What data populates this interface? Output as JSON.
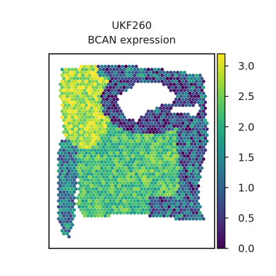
{
  "chart_data": {
    "type": "heatmap",
    "subtype": "spatial-transcriptomics-spot-map",
    "title_lines": [
      "UKF260",
      "BCAN expression"
    ],
    "xlabel": "",
    "ylabel": "",
    "axis_ticks_shown": false,
    "colormap": "viridis",
    "colorbar": {
      "min": 0.0,
      "max": 3.2,
      "ticks": [
        0.0,
        0.5,
        1.0,
        1.5,
        2.0,
        2.5,
        3.0
      ],
      "tick_labels": [
        "0.0",
        "0.5",
        "1.0",
        "1.5",
        "2.0",
        "2.5",
        "3.0"
      ],
      "placement": "right"
    },
    "expression_regions": [
      {
        "region": "upper-left tissue band",
        "approx_value": 2.5
      },
      {
        "region": "central tissue body",
        "approx_value": 2.2
      },
      {
        "region": "right edge",
        "approx_value": 0.9
      },
      {
        "region": "around upper void",
        "approx_value": 0.6
      },
      {
        "region": "left detached strip",
        "approx_value": 1.3
      },
      {
        "region": "lower-right border",
        "approx_value": 1.0
      }
    ],
    "colors": {
      "viridis_low": "#440154",
      "viridis_mid": "#21918c",
      "viridis_high": "#fde725",
      "frame": "#000000"
    }
  }
}
